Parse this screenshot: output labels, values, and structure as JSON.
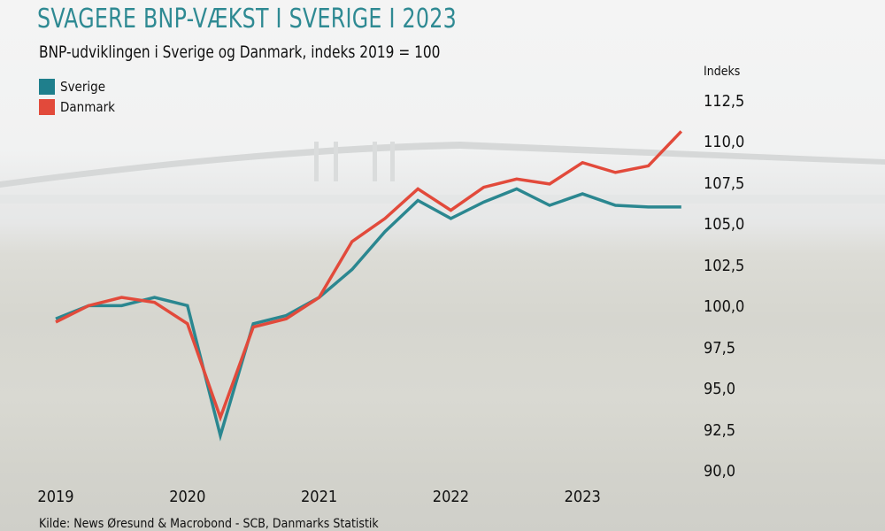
{
  "title": "SVAGERE BNP-VÆKST I SVERIGE I 2023",
  "subtitle": "BNP-udviklingen i Sverige og Danmark, indeks 2019 = 100",
  "source": "Kilde: News Øresund & Macrobond - SCB, Danmarks Statistik",
  "colors": {
    "title": "#2f8a93",
    "sverige": "#2b8790",
    "danmark": "#e24a3b"
  },
  "chart_data": {
    "type": "line",
    "title": "SVAGERE BNP-VÆKST I SVERIGE I 2023",
    "subtitle": "BNP-udviklingen i Sverige og Danmark, indeks 2019 = 100",
    "ylabel": "Indeks",
    "ylim": [
      90,
      112.5
    ],
    "yticks": [
      "112,5",
      "110,0",
      "107,5",
      "105,0",
      "102,5",
      "100,0",
      "97,5",
      "95,0",
      "92,5",
      "90,0"
    ],
    "xticks": [
      "2019",
      "2020",
      "2021",
      "2022",
      "2023"
    ],
    "x": [
      "2019Q1",
      "2019Q2",
      "2019Q3",
      "2019Q4",
      "2020Q1",
      "2020Q2",
      "2020Q3",
      "2020Q4",
      "2021Q1",
      "2021Q2",
      "2021Q3",
      "2021Q4",
      "2022Q1",
      "2022Q2",
      "2022Q3",
      "2022Q4",
      "2023Q1",
      "2023Q2",
      "2023Q3",
      "2023Q4"
    ],
    "legend_position": "top-left",
    "series": [
      {
        "name": "Sverige",
        "color": "#2b8790",
        "values": [
          99.3,
          100.1,
          100.1,
          100.6,
          100.1,
          92.2,
          99.0,
          99.5,
          100.6,
          102.3,
          104.6,
          106.5,
          105.4,
          106.4,
          107.2,
          106.2,
          106.9,
          106.2,
          106.1,
          106.1
        ]
      },
      {
        "name": "Danmark",
        "color": "#e24a3b",
        "values": [
          99.1,
          100.1,
          100.6,
          100.3,
          99.0,
          93.3,
          98.8,
          99.3,
          100.6,
          104.0,
          105.4,
          107.2,
          105.9,
          107.3,
          107.8,
          107.5,
          108.8,
          108.2,
          108.6,
          110.7
        ]
      }
    ]
  }
}
